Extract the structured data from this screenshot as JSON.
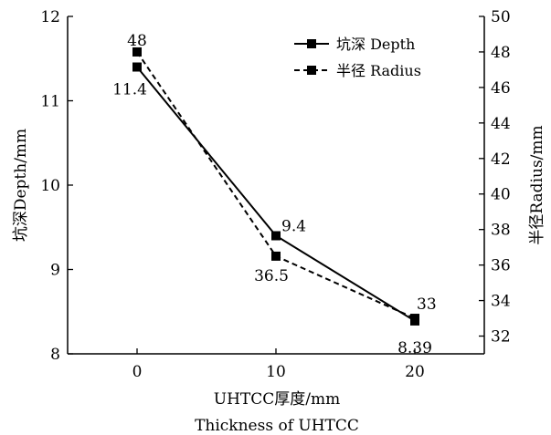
{
  "chart_data": {
    "type": "line",
    "x": [
      0,
      10,
      20
    ],
    "xlabel_line1": "UHTCC厚度/mm",
    "xlabel_line2": "Thickness of UHTCC",
    "ylabel_left": "坑深Depth/mm",
    "ylabel_right": "半径Radius/mm",
    "xlim": [
      -5,
      25
    ],
    "ylim_left": [
      8,
      12
    ],
    "ylim_right": [
      31,
      50
    ],
    "xticks": [
      0,
      10,
      20
    ],
    "yticks_left": [
      8,
      9,
      10,
      11,
      12
    ],
    "yticks_right": [
      32,
      34,
      36,
      38,
      40,
      42,
      44,
      46,
      48,
      50
    ],
    "legend_position": "top-right",
    "series": [
      {
        "name": "坑深 Depth",
        "axis": "left",
        "line_style": "solid",
        "marker": "square",
        "values": [
          11.4,
          9.4,
          8.39
        ],
        "data_labels": [
          "11.4",
          "9.4",
          "8.39"
        ]
      },
      {
        "name": "半径 Radius",
        "axis": "right",
        "line_style": "dashed",
        "marker": "square",
        "values": [
          48,
          36.5,
          33
        ],
        "data_labels": [
          "48",
          "36.5",
          "33"
        ]
      }
    ]
  }
}
